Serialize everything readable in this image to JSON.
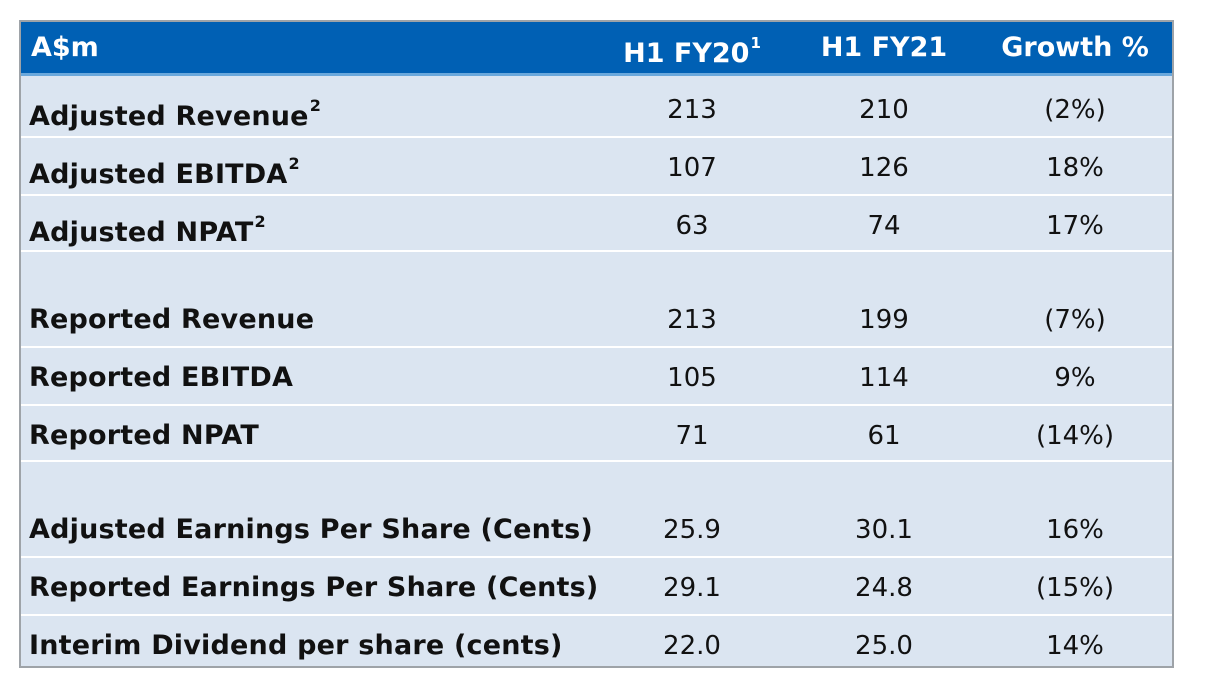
{
  "header": {
    "label": "A$m",
    "col1": "H1 FY20",
    "col1_sup": "1",
    "col2": "H1 FY21",
    "col3": "Growth %"
  },
  "rows": [
    {
      "label": "Adjusted Revenue",
      "sup": "2",
      "h1fy20": "213",
      "h1fy21": "210",
      "growth": "(2%)"
    },
    {
      "label": "Adjusted EBITDA",
      "sup": "2",
      "h1fy20": "107",
      "h1fy21": "126",
      "growth": "18%"
    },
    {
      "label": "Adjusted NPAT",
      "sup": "2",
      "h1fy20": "63",
      "h1fy21": "74",
      "growth": "17%"
    },
    {
      "label": "Reported Revenue",
      "sup": "",
      "h1fy20": "213",
      "h1fy21": "199",
      "growth": "(7%)"
    },
    {
      "label": "Reported EBITDA",
      "sup": "",
      "h1fy20": "105",
      "h1fy21": "114",
      "growth": "9%"
    },
    {
      "label": "Reported NPAT",
      "sup": "",
      "h1fy20": "71",
      "h1fy21": "61",
      "growth": "(14%)"
    },
    {
      "label": "Adjusted Earnings Per Share (Cents)",
      "sup": "",
      "h1fy20": "25.9",
      "h1fy21": "30.1",
      "growth": "16%"
    },
    {
      "label": "Reported Earnings Per Share (Cents)",
      "sup": "",
      "h1fy20": "29.1",
      "h1fy21": "24.8",
      "growth": "(15%)"
    },
    {
      "label": "Interim Dividend per share (cents)",
      "sup": "",
      "h1fy20": "22.0",
      "h1fy21": "25.0",
      "growth": "14%"
    }
  ],
  "colors": {
    "header_bg": "#0060b4",
    "row_bg": "#dbe5f1",
    "separator": "#ffffff"
  }
}
